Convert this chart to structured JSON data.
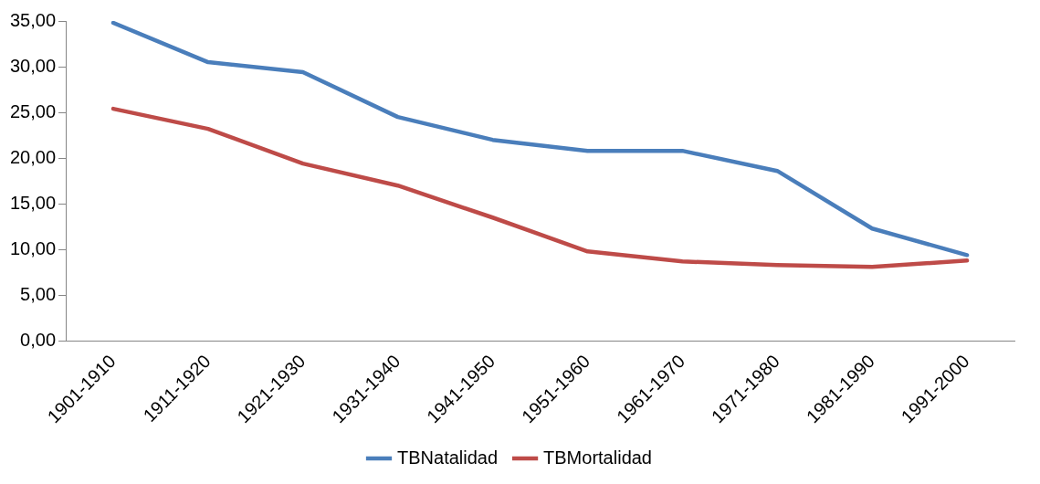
{
  "chart_data": {
    "type": "line",
    "categories": [
      "1901-1910",
      "1911-1920",
      "1921-1930",
      "1931-1940",
      "1941-1950",
      "1951-1960",
      "1961-1970",
      "1971-1980",
      "1981-1990",
      "1991-2000"
    ],
    "series": [
      {
        "name": "TBNatalidad",
        "color": "#4a7ebb",
        "values": [
          34.8,
          30.5,
          29.4,
          24.5,
          22.0,
          20.8,
          20.8,
          18.6,
          12.3,
          9.4
        ]
      },
      {
        "name": "TBMortalidad",
        "color": "#be4b48",
        "values": [
          25.4,
          23.2,
          19.4,
          17.0,
          13.5,
          9.8,
          8.7,
          8.3,
          8.1,
          8.8
        ]
      }
    ],
    "ylim": [
      0,
      35
    ],
    "yticks": [
      {
        "value": 0,
        "label": "0,00"
      },
      {
        "value": 5,
        "label": "5,00"
      },
      {
        "value": 10,
        "label": "10,00"
      },
      {
        "value": 15,
        "label": "15,00"
      },
      {
        "value": 20,
        "label": "20,00"
      },
      {
        "value": 25,
        "label": "25,00"
      },
      {
        "value": 30,
        "label": "30,00"
      },
      {
        "value": 35,
        "label": "35,00"
      }
    ],
    "grid": false,
    "legend": "bottom",
    "marker": "none",
    "line_style": "solid"
  }
}
